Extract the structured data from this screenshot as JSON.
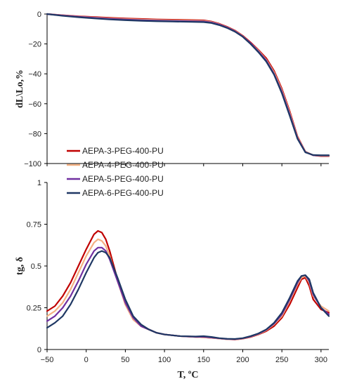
{
  "chart_data": [
    {
      "type": "line",
      "panel": "top",
      "ylabel": "dL\\Lo,%",
      "ylim": [
        -100,
        5
      ],
      "yticks": [
        0,
        -20,
        -40,
        -60,
        -80,
        -100
      ],
      "xlim": [
        -50,
        310
      ],
      "series": [
        {
          "name": "AEPA-3-PEG-400-PU",
          "color": "#c00000",
          "x": [
            -50,
            -30,
            -10,
            10,
            30,
            50,
            70,
            90,
            110,
            130,
            150,
            160,
            170,
            180,
            190,
            200,
            210,
            220,
            230,
            240,
            250,
            260,
            270,
            280,
            290,
            300,
            310
          ],
          "y": [
            0,
            -0.8,
            -1.5,
            -2,
            -2.5,
            -3,
            -3.3,
            -3.6,
            -3.8,
            -4,
            -4.2,
            -5,
            -6.5,
            -8.5,
            -11,
            -14.5,
            -19,
            -24,
            -29.5,
            -38,
            -50,
            -65,
            -82,
            -92,
            -94.5,
            -95,
            -95
          ]
        },
        {
          "name": "AEPA-4-PEG-400-PU",
          "color": "#f4b183",
          "x": [
            -50,
            -30,
            -10,
            10,
            30,
            50,
            70,
            90,
            110,
            130,
            150,
            160,
            170,
            180,
            190,
            200,
            210,
            220,
            230,
            240,
            250,
            260,
            270,
            280,
            290,
            300,
            310
          ],
          "y": [
            0,
            -0.9,
            -1.7,
            -2.3,
            -2.9,
            -3.4,
            -3.7,
            -4,
            -4.2,
            -4.4,
            -4.6,
            -5.3,
            -6.8,
            -8.8,
            -11.3,
            -14.8,
            -19.5,
            -24.5,
            -30.5,
            -39,
            -51,
            -66,
            -82.5,
            -92,
            -94.5,
            -94.8,
            -94.8
          ]
        },
        {
          "name": "AEPA-5-PEG-400-PU",
          "color": "#7030a0",
          "x": [
            -50,
            -30,
            -10,
            10,
            30,
            50,
            70,
            90,
            110,
            130,
            150,
            160,
            170,
            180,
            190,
            200,
            210,
            220,
            230,
            240,
            250,
            260,
            270,
            280,
            290,
            300,
            310
          ],
          "y": [
            0,
            -1,
            -1.8,
            -2.5,
            -3.2,
            -3.7,
            -4.1,
            -4.4,
            -4.6,
            -4.8,
            -5,
            -5.6,
            -7,
            -9,
            -11.5,
            -15,
            -19.5,
            -25,
            -31,
            -40,
            -52,
            -67,
            -83,
            -92.3,
            -94.5,
            -94.6,
            -94.6
          ]
        },
        {
          "name": "AEPA-6-PEG-400-PU",
          "color": "#1f3864",
          "x": [
            -50,
            -30,
            -10,
            10,
            30,
            50,
            70,
            90,
            110,
            130,
            150,
            160,
            170,
            180,
            190,
            200,
            210,
            220,
            230,
            240,
            250,
            260,
            270,
            280,
            290,
            300,
            310
          ],
          "y": [
            0,
            -1.2,
            -2.1,
            -2.9,
            -3.6,
            -4.1,
            -4.5,
            -4.8,
            -5,
            -5.2,
            -5.4,
            -6,
            -7.4,
            -9.3,
            -11.8,
            -15.2,
            -20,
            -25.5,
            -31.8,
            -40.5,
            -53,
            -68,
            -83.5,
            -92.5,
            -94.3,
            -94.5,
            -94.5
          ]
        }
      ]
    },
    {
      "type": "line",
      "panel": "bottom",
      "xlabel": "T, ºC",
      "ylabel": "tg, δ",
      "ylim": [
        0,
        1
      ],
      "yticks": [
        0,
        0.25,
        0.5,
        0.75,
        1
      ],
      "ytick_labels": [
        "0",
        "0.25",
        "0.5",
        "0.75",
        "1"
      ],
      "xlim": [
        -50,
        310
      ],
      "xticks": [
        -50,
        0,
        50,
        100,
        150,
        200,
        250,
        300
      ],
      "series": [
        {
          "name": "AEPA-3-PEG-400-PU",
          "color": "#c00000",
          "x": [
            -50,
            -40,
            -30,
            -20,
            -10,
            0,
            10,
            15,
            20,
            25,
            30,
            40,
            50,
            60,
            70,
            80,
            90,
            100,
            120,
            140,
            150,
            160,
            170,
            180,
            190,
            200,
            210,
            220,
            230,
            240,
            250,
            260,
            270,
            275,
            280,
            285,
            290,
            300,
            310
          ],
          "y": [
            0.23,
            0.26,
            0.32,
            0.4,
            0.5,
            0.6,
            0.69,
            0.71,
            0.7,
            0.66,
            0.59,
            0.42,
            0.27,
            0.18,
            0.14,
            0.12,
            0.1,
            0.09,
            0.08,
            0.075,
            0.073,
            0.07,
            0.066,
            0.062,
            0.06,
            0.065,
            0.075,
            0.09,
            0.11,
            0.14,
            0.19,
            0.27,
            0.37,
            0.42,
            0.43,
            0.38,
            0.3,
            0.24,
            0.22
          ]
        },
        {
          "name": "AEPA-4-PEG-400-PU",
          "color": "#f4b183",
          "x": [
            -50,
            -40,
            -30,
            -20,
            -10,
            0,
            10,
            15,
            20,
            25,
            30,
            40,
            50,
            60,
            70,
            80,
            90,
            100,
            120,
            140,
            150,
            160,
            170,
            180,
            190,
            200,
            210,
            220,
            230,
            240,
            250,
            260,
            270,
            275,
            280,
            285,
            290,
            300,
            310
          ],
          "y": [
            0.2,
            0.23,
            0.28,
            0.36,
            0.46,
            0.56,
            0.64,
            0.66,
            0.65,
            0.62,
            0.56,
            0.41,
            0.27,
            0.18,
            0.14,
            0.12,
            0.1,
            0.09,
            0.08,
            0.075,
            0.073,
            0.07,
            0.066,
            0.062,
            0.061,
            0.066,
            0.077,
            0.092,
            0.115,
            0.15,
            0.2,
            0.29,
            0.39,
            0.43,
            0.44,
            0.4,
            0.32,
            0.26,
            0.23
          ]
        },
        {
          "name": "AEPA-5-PEG-400-PU",
          "color": "#7030a0",
          "x": [
            -50,
            -40,
            -30,
            -20,
            -10,
            0,
            10,
            15,
            20,
            25,
            30,
            40,
            50,
            60,
            70,
            80,
            90,
            100,
            120,
            140,
            150,
            160,
            170,
            180,
            190,
            200,
            210,
            220,
            230,
            240,
            250,
            260,
            270,
            275,
            280,
            285,
            290,
            300,
            310
          ],
          "y": [
            0.17,
            0.2,
            0.25,
            0.32,
            0.41,
            0.51,
            0.59,
            0.61,
            0.61,
            0.59,
            0.54,
            0.41,
            0.28,
            0.19,
            0.14,
            0.12,
            0.1,
            0.09,
            0.08,
            0.076,
            0.076,
            0.072,
            0.067,
            0.063,
            0.062,
            0.067,
            0.078,
            0.094,
            0.118,
            0.155,
            0.21,
            0.3,
            0.4,
            0.44,
            0.445,
            0.41,
            0.33,
            0.25,
            0.21
          ]
        },
        {
          "name": "AEPA-6-PEG-400-PU",
          "color": "#1f3864",
          "x": [
            -50,
            -40,
            -30,
            -20,
            -10,
            0,
            10,
            15,
            20,
            25,
            30,
            40,
            50,
            60,
            70,
            80,
            90,
            100,
            120,
            140,
            150,
            160,
            170,
            180,
            190,
            200,
            210,
            220,
            230,
            240,
            250,
            260,
            270,
            275,
            280,
            285,
            290,
            300,
            310
          ],
          "y": [
            0.13,
            0.16,
            0.2,
            0.27,
            0.36,
            0.46,
            0.55,
            0.58,
            0.59,
            0.58,
            0.55,
            0.43,
            0.3,
            0.2,
            0.15,
            0.12,
            0.1,
            0.09,
            0.08,
            0.078,
            0.08,
            0.075,
            0.068,
            0.064,
            0.063,
            0.068,
            0.08,
            0.096,
            0.12,
            0.16,
            0.22,
            0.31,
            0.41,
            0.44,
            0.445,
            0.42,
            0.34,
            0.25,
            0.2
          ]
        }
      ]
    }
  ],
  "legend": {
    "placement": "inside-left",
    "entries": [
      "AEPA-3-PEG-400-PU",
      "AEPA-4-PEG-400-PU",
      "AEPA-5-PEG-400-PU",
      "AEPA-6-PEG-400-PU"
    ]
  }
}
